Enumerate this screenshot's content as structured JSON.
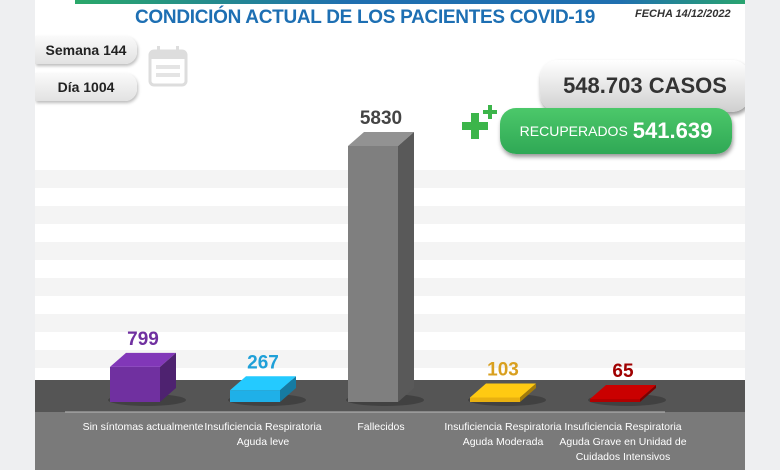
{
  "header": {
    "title": "CONDICIÓN ACTUAL DE LOS PACIENTES COVID-19",
    "fecha": "FECHA 14/12/2022"
  },
  "semana": "Semana 144",
  "dia": "Día 1004",
  "casos": "548.703 CASOS",
  "recuperados": {
    "label": "RECUPERADOS",
    "value": "541.639"
  },
  "icons": [
    "calendar-icon",
    "plus-icon"
  ],
  "chart_data": {
    "type": "bar",
    "style": "3d",
    "categories": [
      "Sin síntomas actualmente",
      "Insuficiencia Respiratoria Aguda leve",
      "Fallecidos",
      "Insuficiencia Respiratoria Aguda Moderada",
      "Insuficiencia Respiratoria Aguda Grave en Unidad de Cuidados Intensivos"
    ],
    "values": [
      799,
      267,
      5830,
      103,
      65
    ],
    "labels": [
      "799",
      "267",
      "5830",
      "103",
      "65"
    ],
    "colors": [
      "#7030a0",
      "#1fb0e8",
      "#7f7f7f",
      "#e8b010",
      "#b00000"
    ],
    "label_colors": [
      "#7030a0",
      "#1fa0d8",
      "#444444",
      "#d9a020",
      "#a00000"
    ],
    "grid": false
  }
}
